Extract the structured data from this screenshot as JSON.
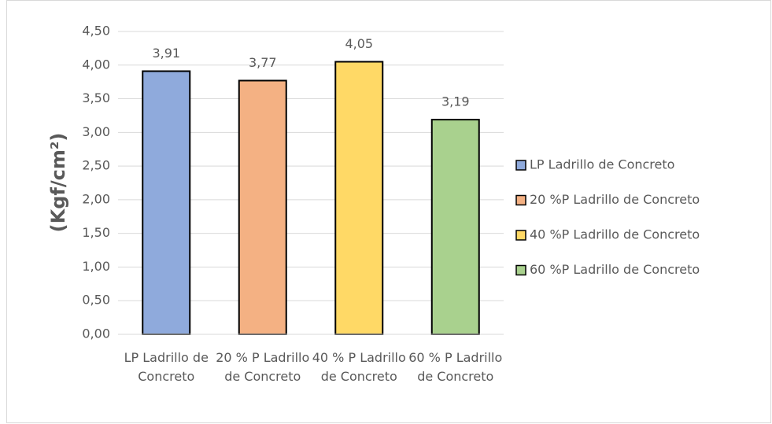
{
  "chart_data": {
    "type": "bar",
    "y_label": "(Kgf/cm²)",
    "categories": [
      "LP Ladrillo de Concreto",
      "20 % P Ladrillo de Concreto",
      "40 % P Ladrillo de Concreto",
      "60 % P Ladrillo de Concreto"
    ],
    "series": [
      {
        "name": "LP Ladrillo de Concreto",
        "color": "#8faadc",
        "values": [
          3.91,
          null,
          null,
          null
        ],
        "value_labels": [
          "3,91",
          null,
          null,
          null
        ]
      },
      {
        "name": "20 %P Ladrillo de Concreto",
        "color": "#f4b183",
        "values": [
          null,
          3.77,
          null,
          null
        ],
        "value_labels": [
          null,
          "3,77",
          null,
          null
        ]
      },
      {
        "name": "40 %P Ladrillo de Concreto",
        "color": "#ffd966",
        "values": [
          null,
          null,
          4.05,
          null
        ],
        "value_labels": [
          null,
          null,
          "4,05",
          null
        ]
      },
      {
        "name": "60 %P Ladrillo de Concreto",
        "color": "#a9d18e",
        "values": [
          null,
          null,
          null,
          3.19
        ],
        "value_labels": [
          null,
          null,
          null,
          "3,19"
        ]
      }
    ],
    "ylim": [
      0,
      4.5
    ],
    "yticks": [
      {
        "value": 0,
        "label": "0,00"
      },
      {
        "value": 0.5,
        "label": "0,50"
      },
      {
        "value": 1,
        "label": "1,00"
      },
      {
        "value": 1.5,
        "label": "1,50"
      },
      {
        "value": 2,
        "label": "2,00"
      },
      {
        "value": 2.5,
        "label": "2,50"
      },
      {
        "value": 3,
        "label": "3,00"
      },
      {
        "value": 3.5,
        "label": "3,50"
      },
      {
        "value": 4,
        "label": "4,00"
      },
      {
        "value": 4.5,
        "label": "4,50"
      }
    ],
    "grid": true,
    "legend": "right"
  }
}
